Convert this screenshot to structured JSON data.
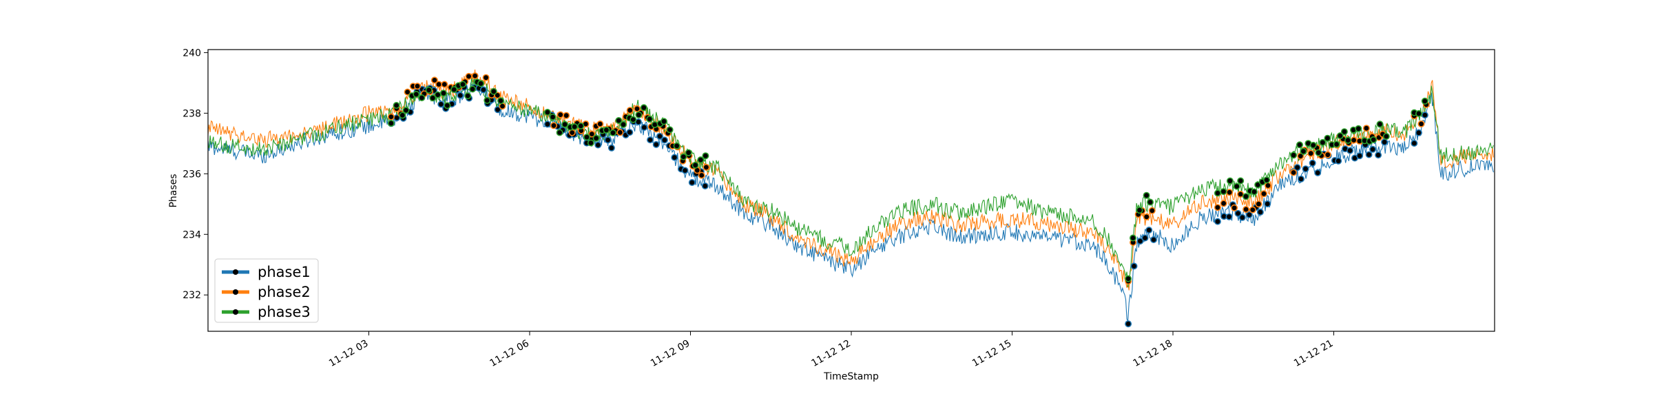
{
  "chart_data": {
    "type": "line",
    "title": "",
    "xlabel": "TimeStamp",
    "ylabel": "Phases",
    "xlim": [
      "2019-11-12 00:00",
      "2019-11-13 00:00"
    ],
    "ylim": [
      230.8,
      240.1
    ],
    "x_ticks": [
      "11-12 03",
      "11-12 06",
      "11-12 09",
      "11-12 12",
      "11-12 15",
      "11-12 18",
      "11-12 21"
    ],
    "y_ticks": [
      "232",
      "234",
      "236",
      "238",
      "240"
    ],
    "grid": false,
    "legend_position": "lower-left",
    "markers": "black dots on anomalous points",
    "series": [
      {
        "name": "phase1",
        "color": "#1f77b4",
        "x": [
          "00:00",
          "01:00",
          "02:00",
          "03:00",
          "03:30",
          "04:00",
          "04:30",
          "05:00",
          "05:30",
          "06:00",
          "06:30",
          "07:00",
          "07:30",
          "08:00",
          "08:30",
          "09:00",
          "09:30",
          "10:00",
          "10:30",
          "11:00",
          "11:30",
          "12:00",
          "12:30",
          "13:00",
          "13:30",
          "14:00",
          "14:30",
          "15:00",
          "15:30",
          "16:00",
          "16:30",
          "17:00",
          "17:10",
          "17:20",
          "17:40",
          "18:00",
          "18:30",
          "19:00",
          "19:30",
          "20:00",
          "20:30",
          "21:00",
          "21:30",
          "22:00",
          "22:20",
          "22:40",
          "22:50",
          "23:00",
          "23:30",
          "24:00"
        ],
        "y": [
          236.9,
          236.6,
          237.2,
          237.6,
          237.8,
          238.6,
          238.4,
          238.9,
          238.1,
          237.9,
          237.6,
          237.2,
          237.1,
          237.7,
          237.0,
          235.9,
          235.6,
          234.7,
          234.3,
          233.6,
          233.2,
          232.8,
          233.6,
          234.0,
          234.3,
          233.9,
          234.0,
          234.1,
          233.9,
          233.8,
          233.7,
          232.4,
          231.3,
          233.8,
          234.0,
          233.6,
          234.5,
          234.8,
          234.5,
          235.6,
          236.1,
          236.5,
          236.8,
          236.9,
          236.8,
          237.6,
          238.6,
          236.0,
          236.2,
          236.3
        ]
      },
      {
        "name": "phase2",
        "color": "#ff7f0e",
        "x": [
          "00:00",
          "01:00",
          "02:00",
          "03:00",
          "03:30",
          "04:00",
          "04:30",
          "05:00",
          "05:30",
          "06:00",
          "06:30",
          "07:00",
          "07:30",
          "08:00",
          "08:30",
          "09:00",
          "09:30",
          "10:00",
          "10:30",
          "11:00",
          "11:30",
          "12:00",
          "12:30",
          "13:00",
          "13:30",
          "14:00",
          "14:30",
          "15:00",
          "15:30",
          "16:00",
          "16:30",
          "17:00",
          "17:10",
          "17:20",
          "17:40",
          "18:00",
          "18:30",
          "19:00",
          "19:30",
          "20:00",
          "20:30",
          "21:00",
          "21:30",
          "22:00",
          "22:20",
          "22:40",
          "22:50",
          "23:00",
          "23:30",
          "24:00"
        ],
        "y": [
          237.5,
          237.1,
          237.4,
          238.0,
          238.1,
          238.9,
          238.7,
          239.2,
          238.5,
          238.2,
          237.8,
          237.5,
          237.4,
          238.1,
          237.5,
          236.4,
          236.0,
          235.0,
          234.6,
          233.9,
          233.5,
          233.1,
          233.9,
          234.4,
          234.6,
          234.3,
          234.4,
          234.5,
          234.4,
          234.2,
          234.1,
          232.9,
          232.2,
          234.6,
          234.5,
          234.3,
          235.0,
          235.2,
          235.0,
          236.0,
          236.6,
          237.0,
          237.2,
          237.4,
          237.3,
          238.0,
          239.0,
          236.4,
          236.6,
          236.7
        ]
      },
      {
        "name": "phase3",
        "color": "#2ca02c",
        "x": [
          "00:00",
          "01:00",
          "02:00",
          "03:00",
          "03:30",
          "04:00",
          "04:30",
          "05:00",
          "05:30",
          "06:00",
          "06:30",
          "07:00",
          "07:30",
          "08:00",
          "08:30",
          "09:00",
          "09:30",
          "10:00",
          "10:30",
          "11:00",
          "11:30",
          "12:00",
          "12:30",
          "13:00",
          "13:30",
          "14:00",
          "14:30",
          "15:00",
          "15:30",
          "16:00",
          "16:30",
          "17:00",
          "17:10",
          "17:20",
          "17:40",
          "18:00",
          "18:30",
          "19:00",
          "19:30",
          "20:00",
          "20:30",
          "21:00",
          "21:30",
          "22:00",
          "22:20",
          "22:40",
          "22:50",
          "23:00",
          "23:30",
          "24:00"
        ],
        "y": [
          237.0,
          236.8,
          237.3,
          237.8,
          238.0,
          238.7,
          238.5,
          239.0,
          238.3,
          238.1,
          237.7,
          237.3,
          237.3,
          238.2,
          237.6,
          236.5,
          236.2,
          235.1,
          234.8,
          234.2,
          233.8,
          233.5,
          234.3,
          234.8,
          235.0,
          234.7,
          234.9,
          235.2,
          234.8,
          234.6,
          234.5,
          233.3,
          232.4,
          235.0,
          235.0,
          234.9,
          235.5,
          235.6,
          235.4,
          236.4,
          236.8,
          237.1,
          237.3,
          237.4,
          237.4,
          238.1,
          238.7,
          236.6,
          236.7,
          236.9
        ]
      }
    ],
    "anomaly_markers_y_range_note": ""
  }
}
